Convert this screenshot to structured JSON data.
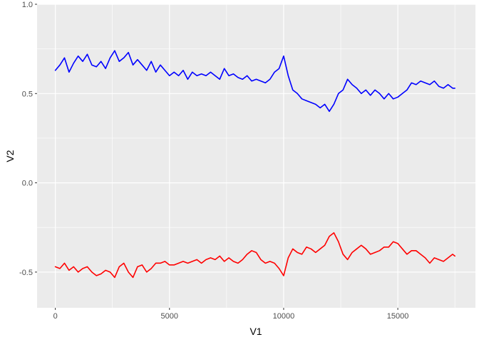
{
  "chart_data": {
    "type": "line",
    "title": "",
    "xlabel": "V1",
    "ylabel": "V2",
    "xlim": [
      -800,
      18400
    ],
    "ylim": [
      -0.7,
      1.0
    ],
    "x_ticks": [
      0,
      5000,
      10000,
      15000
    ],
    "x_tick_labels": [
      "0",
      "5000",
      "10000",
      "15000"
    ],
    "y_ticks": [
      -0.5,
      0.0,
      0.5,
      1.0
    ],
    "y_tick_labels": [
      "-0.5",
      "0.0",
      "0.5",
      "1.0"
    ],
    "grid": true,
    "legend": "none",
    "background_color": "#ebebeb",
    "grid_color": "#ffffff",
    "series": [
      {
        "color": "#0000ff",
        "x": [
          0,
          200,
          400,
          600,
          800,
          1000,
          1200,
          1400,
          1600,
          1800,
          2000,
          2200,
          2400,
          2600,
          2800,
          3000,
          3200,
          3400,
          3600,
          3800,
          4000,
          4200,
          4400,
          4600,
          4800,
          5000,
          5200,
          5400,
          5600,
          5800,
          6000,
          6200,
          6400,
          6600,
          6800,
          7000,
          7200,
          7400,
          7600,
          7800,
          8000,
          8200,
          8400,
          8600,
          8800,
          9000,
          9200,
          9400,
          9600,
          9800,
          10000,
          10200,
          10400,
          10600,
          10800,
          11000,
          11200,
          11400,
          11600,
          11800,
          12000,
          12200,
          12400,
          12600,
          12800,
          13000,
          13200,
          13400,
          13600,
          13800,
          14000,
          14200,
          14400,
          14600,
          14800,
          15000,
          15200,
          15400,
          15600,
          15800,
          16000,
          16200,
          16400,
          16600,
          16800,
          17000,
          17200,
          17400,
          17500
        ],
        "y": [
          0.63,
          0.66,
          0.7,
          0.62,
          0.67,
          0.71,
          0.68,
          0.72,
          0.66,
          0.65,
          0.68,
          0.64,
          0.7,
          0.74,
          0.68,
          0.7,
          0.73,
          0.66,
          0.69,
          0.66,
          0.63,
          0.68,
          0.62,
          0.66,
          0.63,
          0.6,
          0.62,
          0.6,
          0.63,
          0.58,
          0.62,
          0.6,
          0.61,
          0.6,
          0.62,
          0.6,
          0.58,
          0.64,
          0.6,
          0.61,
          0.59,
          0.58,
          0.6,
          0.57,
          0.58,
          0.57,
          0.56,
          0.58,
          0.62,
          0.64,
          0.71,
          0.6,
          0.52,
          0.5,
          0.47,
          0.46,
          0.45,
          0.44,
          0.42,
          0.44,
          0.4,
          0.44,
          0.5,
          0.52,
          0.58,
          0.55,
          0.53,
          0.5,
          0.52,
          0.49,
          0.52,
          0.5,
          0.47,
          0.5,
          0.47,
          0.48,
          0.5,
          0.52,
          0.56,
          0.55,
          0.57,
          0.56,
          0.55,
          0.57,
          0.54,
          0.53,
          0.55,
          0.53,
          0.53
        ]
      },
      {
        "color": "#ff0000",
        "x": [
          0,
          200,
          400,
          600,
          800,
          1000,
          1200,
          1400,
          1600,
          1800,
          2000,
          2200,
          2400,
          2600,
          2800,
          3000,
          3200,
          3400,
          3600,
          3800,
          4000,
          4200,
          4400,
          4600,
          4800,
          5000,
          5200,
          5400,
          5600,
          5800,
          6000,
          6200,
          6400,
          6600,
          6800,
          7000,
          7200,
          7400,
          7600,
          7800,
          8000,
          8200,
          8400,
          8600,
          8800,
          9000,
          9200,
          9400,
          9600,
          9800,
          10000,
          10200,
          10400,
          10600,
          10800,
          11000,
          11200,
          11400,
          11600,
          11800,
          12000,
          12200,
          12400,
          12600,
          12800,
          13000,
          13200,
          13400,
          13600,
          13800,
          14000,
          14200,
          14400,
          14600,
          14800,
          15000,
          15200,
          15400,
          15600,
          15800,
          16000,
          16200,
          16400,
          16600,
          16800,
          17000,
          17200,
          17400,
          17500
        ],
        "y": [
          -0.47,
          -0.48,
          -0.45,
          -0.49,
          -0.47,
          -0.5,
          -0.48,
          -0.47,
          -0.5,
          -0.52,
          -0.51,
          -0.49,
          -0.5,
          -0.53,
          -0.47,
          -0.45,
          -0.5,
          -0.53,
          -0.47,
          -0.46,
          -0.5,
          -0.48,
          -0.45,
          -0.45,
          -0.44,
          -0.46,
          -0.46,
          -0.45,
          -0.44,
          -0.45,
          -0.44,
          -0.43,
          -0.45,
          -0.43,
          -0.42,
          -0.43,
          -0.41,
          -0.44,
          -0.42,
          -0.44,
          -0.45,
          -0.43,
          -0.4,
          -0.38,
          -0.39,
          -0.43,
          -0.45,
          -0.44,
          -0.45,
          -0.48,
          -0.52,
          -0.42,
          -0.37,
          -0.39,
          -0.4,
          -0.36,
          -0.37,
          -0.39,
          -0.37,
          -0.35,
          -0.3,
          -0.28,
          -0.33,
          -0.4,
          -0.43,
          -0.39,
          -0.37,
          -0.35,
          -0.37,
          -0.4,
          -0.39,
          -0.38,
          -0.36,
          -0.36,
          -0.33,
          -0.34,
          -0.37,
          -0.4,
          -0.38,
          -0.38,
          -0.4,
          -0.42,
          -0.45,
          -0.42,
          -0.43,
          -0.44,
          -0.42,
          -0.4,
          -0.41
        ]
      }
    ]
  }
}
